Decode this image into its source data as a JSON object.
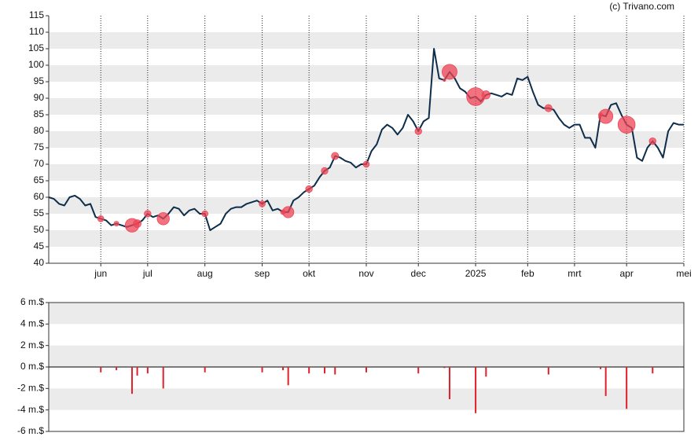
{
  "credit": "(c) Trivano.com",
  "chart_data": [
    {
      "type": "line",
      "categories": [
        null,
        null,
        null,
        null,
        null,
        null,
        null,
        null,
        null,
        null,
        "jun",
        null,
        null,
        null,
        null,
        null,
        null,
        null,
        null,
        "jul",
        null,
        null,
        null,
        null,
        null,
        null,
        null,
        null,
        null,
        null,
        "aug",
        null,
        null,
        null,
        null,
        null,
        null,
        null,
        null,
        null,
        null,
        "sep",
        null,
        null,
        null,
        null,
        null,
        null,
        null,
        null,
        "okt",
        null,
        null,
        null,
        null,
        null,
        null,
        null,
        null,
        null,
        null,
        "nov",
        null,
        null,
        null,
        null,
        null,
        null,
        null,
        null,
        null,
        "dec",
        null,
        null,
        null,
        null,
        null,
        null,
        null,
        null,
        null,
        null,
        "2025",
        null,
        null,
        null,
        null,
        null,
        null,
        null,
        null,
        null,
        "feb",
        null,
        null,
        null,
        null,
        null,
        null,
        null,
        null,
        "mrt",
        null,
        null,
        null,
        null,
        null,
        null,
        null,
        null,
        null,
        "apr",
        null,
        null,
        null,
        null,
        null,
        null,
        null,
        null,
        null,
        null,
        "mei"
      ],
      "values": [
        60,
        59.5,
        58,
        57.5,
        60,
        60.5,
        59.5,
        57.5,
        58,
        54,
        53.5,
        53,
        51.5,
        52,
        51.5,
        51,
        51.5,
        52,
        53,
        55,
        54,
        54.5,
        53.5,
        55,
        57,
        56.5,
        54.5,
        56,
        56.5,
        55,
        55,
        50,
        51,
        52,
        55,
        56.5,
        57,
        57,
        58,
        58.5,
        59,
        58,
        59,
        56,
        56.5,
        55.5,
        55.5,
        59,
        60,
        61.5,
        62.5,
        63.5,
        66,
        68,
        69,
        72.5,
        72,
        71,
        70.5,
        69,
        70,
        70,
        74,
        76,
        80.5,
        82,
        81,
        79,
        81,
        85,
        83,
        80,
        83,
        84,
        105,
        96,
        95.5,
        98,
        96,
        93,
        92,
        90,
        90.5,
        89,
        91,
        91.5,
        91,
        90.5,
        91.5,
        91,
        96,
        95.5,
        96.5,
        92,
        88,
        87,
        87,
        86.5,
        84,
        82,
        81,
        82,
        82,
        78,
        78,
        75,
        85,
        84.5,
        88,
        88.5,
        85,
        82,
        81,
        72,
        71,
        75,
        77,
        75,
        72,
        80,
        82.5,
        82,
        82
      ],
      "color": "#0d2d4a",
      "marker_color": "#ee4455",
      "ylim": [
        40,
        115
      ],
      "yticks": [
        40,
        45,
        50,
        55,
        60,
        65,
        70,
        75,
        80,
        85,
        90,
        95,
        100,
        105,
        110,
        115
      ],
      "grid": true
    },
    {
      "type": "bar",
      "values": [
        null,
        null,
        null,
        null,
        null,
        null,
        null,
        null,
        null,
        null,
        -0.5,
        null,
        null,
        -0.3,
        null,
        null,
        -2.5,
        -0.8,
        null,
        -0.6,
        null,
        null,
        -2,
        null,
        null,
        null,
        null,
        null,
        null,
        null,
        -0.5,
        null,
        null,
        null,
        null,
        null,
        null,
        null,
        null,
        null,
        null,
        -0.5,
        null,
        null,
        null,
        -0.3,
        -1.7,
        null,
        null,
        null,
        -0.6,
        null,
        null,
        -0.6,
        null,
        -0.7,
        null,
        null,
        null,
        null,
        null,
        -0.5,
        null,
        null,
        null,
        null,
        null,
        null,
        null,
        null,
        null,
        -0.6,
        null,
        null,
        null,
        null,
        -0.1,
        -3,
        null,
        null,
        null,
        null,
        -4.3,
        null,
        -0.9,
        null,
        null,
        null,
        null,
        null,
        null,
        null,
        null,
        null,
        null,
        null,
        -0.7,
        null,
        null,
        null,
        null,
        null,
        null,
        null,
        null,
        null,
        -0.2,
        -2.7,
        null,
        null,
        null,
        -3.9,
        null,
        null,
        null,
        null,
        -0.6,
        null,
        null,
        null,
        null,
        null,
        null
      ],
      "color": "#e0202a",
      "ylim": [
        -6,
        6
      ],
      "yticks": [
        {
          "value": -6,
          "label": "-6 m.$"
        },
        {
          "value": -4,
          "label": "-4 m.$"
        },
        {
          "value": -2,
          "label": "-2 m.$"
        },
        {
          "value": 0,
          "label": "0 m.$"
        },
        {
          "value": 2,
          "label": "2 m.$"
        },
        {
          "value": 4,
          "label": "4 m.$"
        },
        {
          "value": 6,
          "label": "6 m.$"
        }
      ],
      "grid": true
    }
  ]
}
